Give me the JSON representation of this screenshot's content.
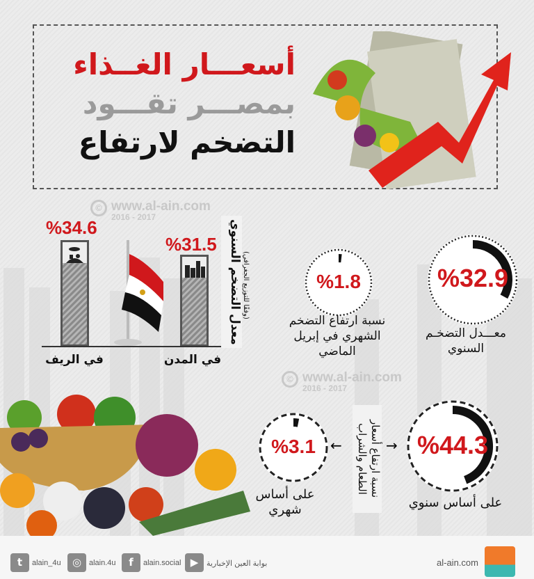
{
  "title": {
    "line1": "أسعـــار الغــذاء",
    "line2": "بمصـــر تقـــود",
    "line3": "التضخم لارتفاع"
  },
  "watermark": {
    "url": "www.al-ain.com",
    "years": "2016 - 2017",
    "symbol": "©"
  },
  "geo": {
    "heading": "معدل التضخم السنوي",
    "subheading": "(وفقًا للتوزيع الجغرافي)",
    "rural": {
      "label": "في الريف",
      "value": "%34.6",
      "number": 34.6,
      "icon": "village-icon"
    },
    "urban": {
      "label": "في المدن",
      "value": "%31.5",
      "number": 31.5,
      "icon": "city-buildings-icon"
    },
    "flag": "egypt-flag"
  },
  "inflation": {
    "annual": {
      "value": "%32.9",
      "number": 32.9,
      "label": "معـــدل التضخـم السنوي"
    },
    "monthly": {
      "value": "%1.8",
      "number": 1.8,
      "label": "نسبة ارتفاع التضخم الشهري في إبريل الماضي"
    }
  },
  "food": {
    "heading": "نسبة ارتفاع أسعار الطعام والشراب",
    "annual": {
      "value": "%44.3",
      "number": 44.3,
      "label": "على أساس سنوي"
    },
    "monthly": {
      "value": "%3.1",
      "number": 3.1,
      "label": "على أساس شهري"
    }
  },
  "footer": {
    "twitter": "alain_4u",
    "instagram": "alain.4u",
    "facebook": "alain.social",
    "youtube": "بوابة العين الإخبارية",
    "site": "al-ain.com",
    "logo_text": "العين"
  },
  "colors": {
    "accent": "#d0181c",
    "dark": "#111111"
  }
}
